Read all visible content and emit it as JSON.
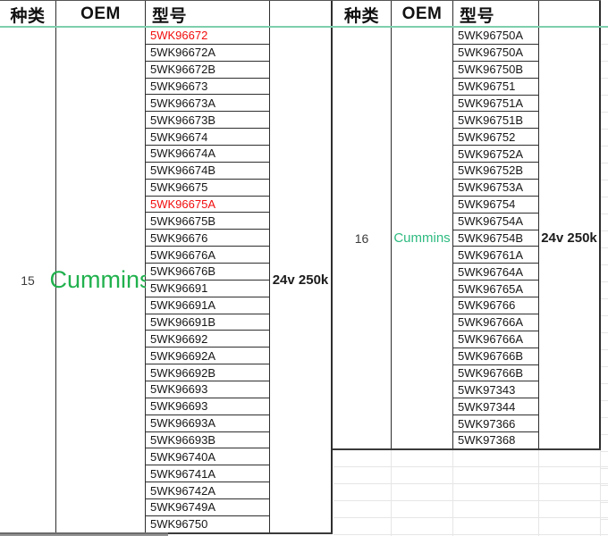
{
  "colors": {
    "accent_green": "#21b14e",
    "accent_green_small": "#2eba80",
    "alert_red": "#f20d0d",
    "header_underline": "#7ecfad",
    "border_dark": "#2e2e2e",
    "grid_faint": "#e6e6e6"
  },
  "left_table": {
    "headers": {
      "category": "种类",
      "oem": "OEM",
      "model": "型号"
    },
    "category_value": "15",
    "oem_value": "Cummins",
    "spec_value": "24v 250k",
    "models": [
      {
        "text": "5WK96672",
        "red": true
      },
      {
        "text": "5WK96672A"
      },
      {
        "text": "5WK96672B"
      },
      {
        "text": "5WK96673"
      },
      {
        "text": "5WK96673A"
      },
      {
        "text": "5WK96673B"
      },
      {
        "text": "5WK96674"
      },
      {
        "text": "5WK96674A"
      },
      {
        "text": "5WK96674B"
      },
      {
        "text": "5WK96675"
      },
      {
        "text": "5WK96675A",
        "red": true
      },
      {
        "text": "5WK96675B"
      },
      {
        "text": "5WK96676"
      },
      {
        "text": "5WK96676A"
      },
      {
        "text": "5WK96676B"
      },
      {
        "text": "5WK96691"
      },
      {
        "text": "5WK96691A"
      },
      {
        "text": "5WK96691B"
      },
      {
        "text": "5WK96692"
      },
      {
        "text": "5WK96692A"
      },
      {
        "text": "5WK96692B"
      },
      {
        "text": "5WK96693"
      },
      {
        "text": "5WK96693"
      },
      {
        "text": "5WK96693A"
      },
      {
        "text": "5WK96693B"
      },
      {
        "text": "5WK96740A"
      },
      {
        "text": "5WK96741A"
      },
      {
        "text": "5WK96742A"
      },
      {
        "text": "5WK96749A"
      },
      {
        "text": "5WK96750"
      }
    ]
  },
  "right_table": {
    "headers": {
      "category": "种类",
      "oem": "OEM",
      "model": "型号"
    },
    "category_value": "16",
    "oem_value": "Cummins",
    "spec_value": "24v 250k",
    "models": [
      {
        "text": "5WK96750A"
      },
      {
        "text": "5WK96750A"
      },
      {
        "text": "5WK96750B"
      },
      {
        "text": "5WK96751"
      },
      {
        "text": "5WK96751A"
      },
      {
        "text": "5WK96751B"
      },
      {
        "text": "5WK96752"
      },
      {
        "text": "5WK96752A"
      },
      {
        "text": "5WK96752B"
      },
      {
        "text": "5WK96753A"
      },
      {
        "text": "5WK96754"
      },
      {
        "text": "5WK96754A"
      },
      {
        "text": "5WK96754B"
      },
      {
        "text": "5WK96761A"
      },
      {
        "text": "5WK96764A"
      },
      {
        "text": "5WK96765A"
      },
      {
        "text": "5WK96766"
      },
      {
        "text": "5WK96766A"
      },
      {
        "text": "5WK96766A"
      },
      {
        "text": "5WK96766B"
      },
      {
        "text": "5WK96766B"
      },
      {
        "text": "5WK97343"
      },
      {
        "text": "5WK97344"
      },
      {
        "text": "5WK97366"
      },
      {
        "text": "5WK97368"
      }
    ]
  }
}
